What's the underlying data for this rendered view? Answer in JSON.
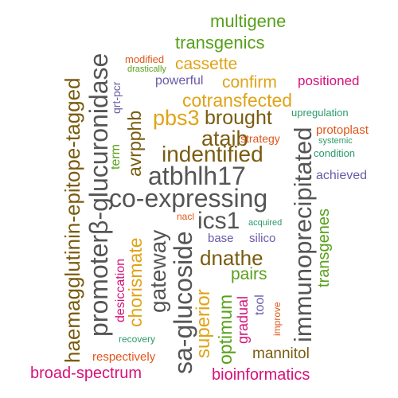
{
  "palette": {
    "olive": "#7a5c10",
    "green": "#58a01a",
    "gray": "#555555",
    "orange": "#e0a317",
    "red": "#e0561a",
    "magenta": "#d6127a",
    "purple": "#6a5aa8",
    "teal": "#2a9a6a"
  },
  "words": [
    {
      "id": "multigene",
      "text": "multigene"
    },
    {
      "id": "transgenics",
      "text": "transgenics"
    },
    {
      "id": "modified",
      "text": "modified"
    },
    {
      "id": "drastically",
      "text": "drastically"
    },
    {
      "id": "cassette",
      "text": "cassette"
    },
    {
      "id": "powerful",
      "text": "powerful"
    },
    {
      "id": "confirm",
      "text": "confirm"
    },
    {
      "id": "positioned",
      "text": "positioned"
    },
    {
      "id": "cotransfected",
      "text": "cotransfected"
    },
    {
      "id": "upregulation",
      "text": "upregulation"
    },
    {
      "id": "pbs3",
      "text": "pbs3"
    },
    {
      "id": "brought",
      "text": "brought"
    },
    {
      "id": "protoplast",
      "text": "protoplast"
    },
    {
      "id": "ataib",
      "text": "ataib"
    },
    {
      "id": "strategy",
      "text": "strategy"
    },
    {
      "id": "systemic",
      "text": "systemic"
    },
    {
      "id": "indentified",
      "text": "indentified"
    },
    {
      "id": "condition",
      "text": "condition"
    },
    {
      "id": "atbhlh17",
      "text": "atbhlh17"
    },
    {
      "id": "achieved",
      "text": "achieved"
    },
    {
      "id": "co-expressing",
      "text": "co-expressing"
    },
    {
      "id": "ics1",
      "text": "ics1"
    },
    {
      "id": "nacl",
      "text": "nacl"
    },
    {
      "id": "acquired",
      "text": "acquired"
    },
    {
      "id": "base",
      "text": "base"
    },
    {
      "id": "silico",
      "text": "silico"
    },
    {
      "id": "dnathe",
      "text": "dnathe"
    },
    {
      "id": "pairs",
      "text": "pairs"
    },
    {
      "id": "tool",
      "text": "tool"
    },
    {
      "id": "improve",
      "text": "improve"
    },
    {
      "id": "recovery",
      "text": "recovery"
    },
    {
      "id": "mannitol",
      "text": "mannitol"
    },
    {
      "id": "respectively",
      "text": "respectively"
    },
    {
      "id": "broad-spectrum",
      "text": "broad-spectrum"
    },
    {
      "id": "bioinformatics",
      "text": "bioinformatics"
    },
    {
      "id": "haemagglutinin-epitope-tagged",
      "text": "haemagglutinin-epitope-tagged"
    },
    {
      "id": "promoter-glucuronidase",
      "text": "promoterβ-glucuronidase"
    },
    {
      "id": "qrt-pcr",
      "text": "qrt-pcr"
    },
    {
      "id": "term",
      "text": "term"
    },
    {
      "id": "avrpphb",
      "text": "avrpphb"
    },
    {
      "id": "chorismate",
      "text": "chorismate"
    },
    {
      "id": "desiccation",
      "text": "desiccation"
    },
    {
      "id": "gateway",
      "text": "gateway"
    },
    {
      "id": "sa-glucoside",
      "text": "sa-glucoside"
    },
    {
      "id": "superior",
      "text": "superior"
    },
    {
      "id": "optimum",
      "text": "optimum"
    },
    {
      "id": "gradual",
      "text": "gradual"
    },
    {
      "id": "immunoprecipitated",
      "text": "immunoprecipitated"
    },
    {
      "id": "transgenes",
      "text": "transgenes"
    }
  ]
}
